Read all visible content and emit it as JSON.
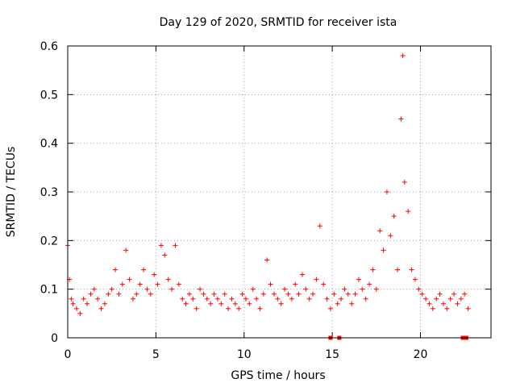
{
  "chart_data": {
    "type": "scatter",
    "title": "Day 129 of 2020, SRMTID for receiver ista",
    "xlabel": "GPS time / hours",
    "ylabel": "SRMTID / TECUs",
    "xlim": [
      0,
      24
    ],
    "ylim": [
      0,
      0.6
    ],
    "xticks": [
      0,
      5,
      10,
      15,
      20
    ],
    "yticks": [
      0,
      0.1,
      0.2,
      0.3,
      0.4,
      0.5,
      0.6
    ],
    "grid": true,
    "marker": "+",
    "series": [
      {
        "name": "SRMTID",
        "color": "#ff0000",
        "sampling": "approximate - dense point cloud summarized as representative points",
        "x": [
          0.0,
          0.1,
          0.2,
          0.3,
          0.5,
          0.7,
          0.9,
          1.1,
          1.3,
          1.5,
          1.7,
          1.9,
          2.1,
          2.3,
          2.5,
          2.7,
          2.9,
          3.1,
          3.3,
          3.5,
          3.7,
          3.9,
          4.1,
          4.3,
          4.5,
          4.7,
          4.9,
          5.1,
          5.3,
          5.5,
          5.7,
          5.9,
          6.1,
          6.3,
          6.5,
          6.7,
          6.9,
          7.1,
          7.3,
          7.5,
          7.7,
          7.9,
          8.1,
          8.3,
          8.5,
          8.7,
          8.9,
          9.1,
          9.3,
          9.5,
          9.7,
          9.9,
          10.1,
          10.3,
          10.5,
          10.7,
          10.9,
          11.1,
          11.3,
          11.5,
          11.7,
          11.9,
          12.1,
          12.3,
          12.5,
          12.7,
          12.9,
          13.1,
          13.3,
          13.5,
          13.7,
          13.9,
          14.1,
          14.3,
          14.5,
          14.7,
          14.9,
          15.1,
          15.3,
          15.5,
          15.7,
          15.9,
          16.1,
          16.3,
          16.5,
          16.7,
          16.9,
          17.1,
          17.3,
          17.5,
          17.7,
          17.9,
          18.1,
          18.3,
          18.5,
          18.7,
          18.9,
          19.0,
          19.1,
          19.3,
          19.5,
          19.7,
          19.9,
          20.1,
          20.3,
          20.5,
          20.7,
          20.9,
          21.1,
          21.3,
          21.5,
          21.7,
          21.9,
          22.1,
          22.3,
          22.5,
          22.7
        ],
        "y": [
          0.19,
          0.12,
          0.08,
          0.07,
          0.06,
          0.05,
          0.08,
          0.07,
          0.09,
          0.1,
          0.08,
          0.06,
          0.07,
          0.09,
          0.1,
          0.14,
          0.09,
          0.11,
          0.18,
          0.12,
          0.08,
          0.09,
          0.11,
          0.14,
          0.1,
          0.09,
          0.13,
          0.11,
          0.19,
          0.17,
          0.12,
          0.1,
          0.19,
          0.11,
          0.08,
          0.07,
          0.09,
          0.08,
          0.06,
          0.1,
          0.09,
          0.08,
          0.07,
          0.09,
          0.08,
          0.07,
          0.09,
          0.06,
          0.08,
          0.07,
          0.06,
          0.09,
          0.08,
          0.07,
          0.1,
          0.08,
          0.06,
          0.09,
          0.16,
          0.11,
          0.09,
          0.08,
          0.07,
          0.1,
          0.09,
          0.08,
          0.11,
          0.09,
          0.13,
          0.1,
          0.08,
          0.09,
          0.12,
          0.23,
          0.11,
          0.08,
          0.06,
          0.09,
          0.07,
          0.08,
          0.1,
          0.09,
          0.07,
          0.09,
          0.12,
          0.1,
          0.08,
          0.11,
          0.14,
          0.1,
          0.22,
          0.18,
          0.3,
          0.21,
          0.25,
          0.14,
          0.45,
          0.58,
          0.32,
          0.26,
          0.14,
          0.12,
          0.1,
          0.09,
          0.08,
          0.07,
          0.06,
          0.08,
          0.09,
          0.07,
          0.06,
          0.08,
          0.09,
          0.07,
          0.08,
          0.09,
          0.06
        ],
        "zero_markers_x": [
          14.9,
          15.4,
          22.4,
          22.6
        ]
      }
    ]
  }
}
